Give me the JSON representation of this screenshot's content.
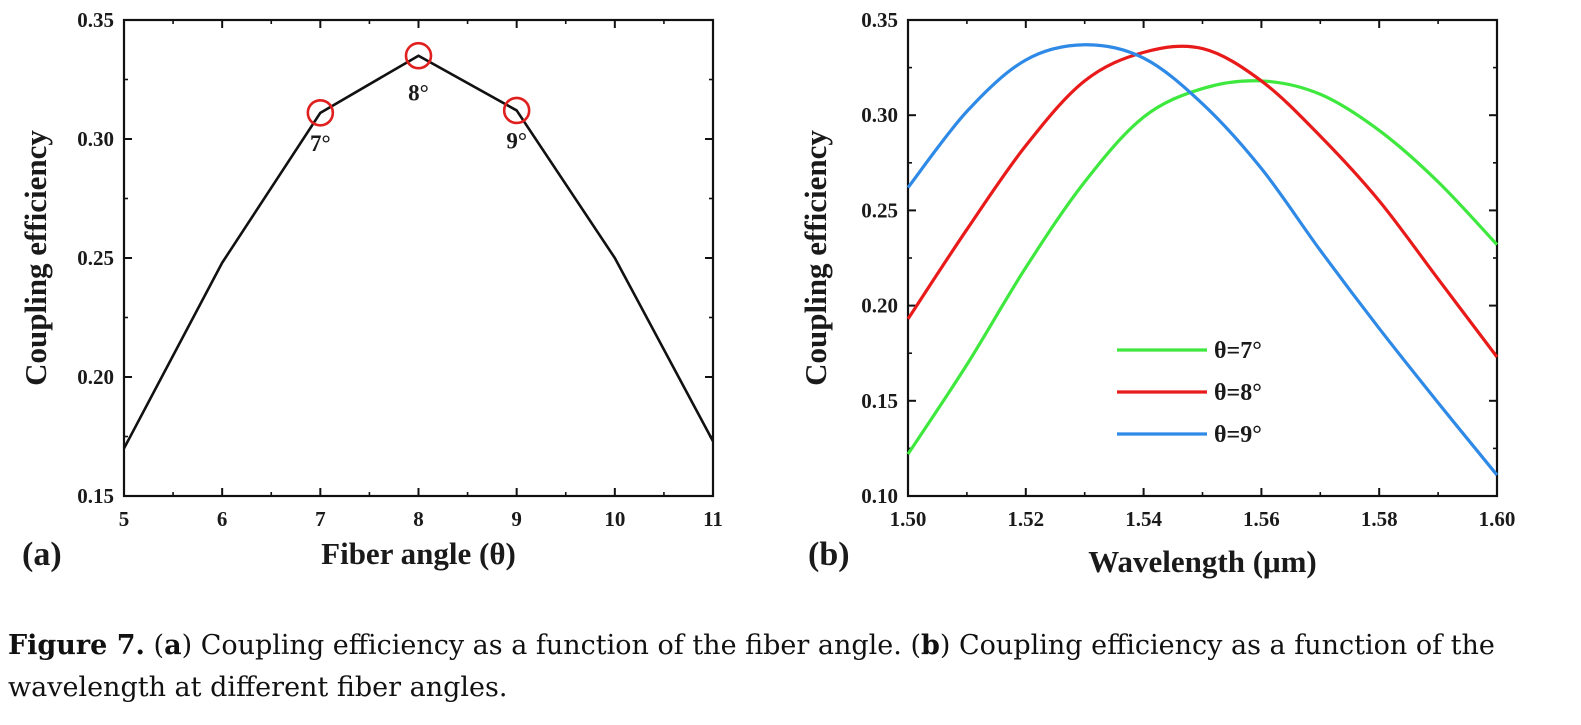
{
  "caption": {
    "label": "Figure 7.",
    "part_a_letter": "a",
    "part_a_text": " Coupling efficiency as a function of the fiber angle. ",
    "part_b_letter": "b",
    "part_b_text": " Coupling efficiency as a function of the wavelength at different fiber angles."
  },
  "chart_data": [
    {
      "type": "line",
      "panel_label": "(a)",
      "xlabel": "Fiber angle (θ)",
      "ylabel": "Coupling efficiency",
      "xlim": [
        5,
        11
      ],
      "ylim": [
        0.15,
        0.35
      ],
      "x_ticks": [
        "5",
        "6",
        "7",
        "8",
        "9",
        "10",
        "11"
      ],
      "y_ticks": [
        "0.15",
        "0.20",
        "0.25",
        "0.30",
        "0.35"
      ],
      "series": [
        {
          "color": "#111111",
          "x": [
            5,
            6,
            7,
            8,
            9,
            10,
            11
          ],
          "y": [
            0.17,
            0.248,
            0.311,
            0.335,
            0.312,
            0.25,
            0.173
          ]
        }
      ],
      "highlighted_points": [
        {
          "x": 7,
          "y": 0.311,
          "label": "7°",
          "color": "#e01f1f"
        },
        {
          "x": 8,
          "y": 0.335,
          "label": "8°",
          "color": "#e01f1f"
        },
        {
          "x": 9,
          "y": 0.312,
          "label": "9°",
          "color": "#e01f1f"
        }
      ],
      "grid": false
    },
    {
      "type": "line",
      "panel_label": "(b)",
      "xlabel": "Wavelength (μm)",
      "ylabel": "Coupling efficiency",
      "xlim": [
        1.5,
        1.6
      ],
      "ylim": [
        0.1,
        0.35
      ],
      "x_ticks": [
        "1.50",
        "1.52",
        "1.54",
        "1.56",
        "1.58",
        "1.60"
      ],
      "y_ticks": [
        "0.10",
        "0.15",
        "0.20",
        "0.25",
        "0.30",
        "0.35"
      ],
      "legend_position": "lower-center",
      "series": [
        {
          "name": "θ=7°",
          "color": "#3ee83e",
          "x": [
            1.5,
            1.51,
            1.52,
            1.53,
            1.54,
            1.55,
            1.56,
            1.57,
            1.58,
            1.59,
            1.6
          ],
          "y": [
            0.122,
            0.169,
            0.22,
            0.265,
            0.299,
            0.314,
            0.318,
            0.311,
            0.292,
            0.265,
            0.232
          ]
        },
        {
          "name": "θ=8°",
          "color": "#e81a1a",
          "x": [
            1.5,
            1.51,
            1.52,
            1.53,
            1.54,
            1.55,
            1.56,
            1.57,
            1.58,
            1.59,
            1.6
          ],
          "y": [
            0.193,
            0.24,
            0.284,
            0.318,
            0.333,
            0.335,
            0.318,
            0.289,
            0.255,
            0.214,
            0.173
          ]
        },
        {
          "name": "θ=9°",
          "color": "#2e8ae6",
          "x": [
            1.5,
            1.51,
            1.52,
            1.53,
            1.54,
            1.55,
            1.56,
            1.57,
            1.58,
            1.59,
            1.6
          ],
          "y": [
            0.262,
            0.302,
            0.329,
            0.337,
            0.33,
            0.306,
            0.272,
            0.229,
            0.188,
            0.149,
            0.111
          ]
        }
      ],
      "grid": false
    }
  ]
}
